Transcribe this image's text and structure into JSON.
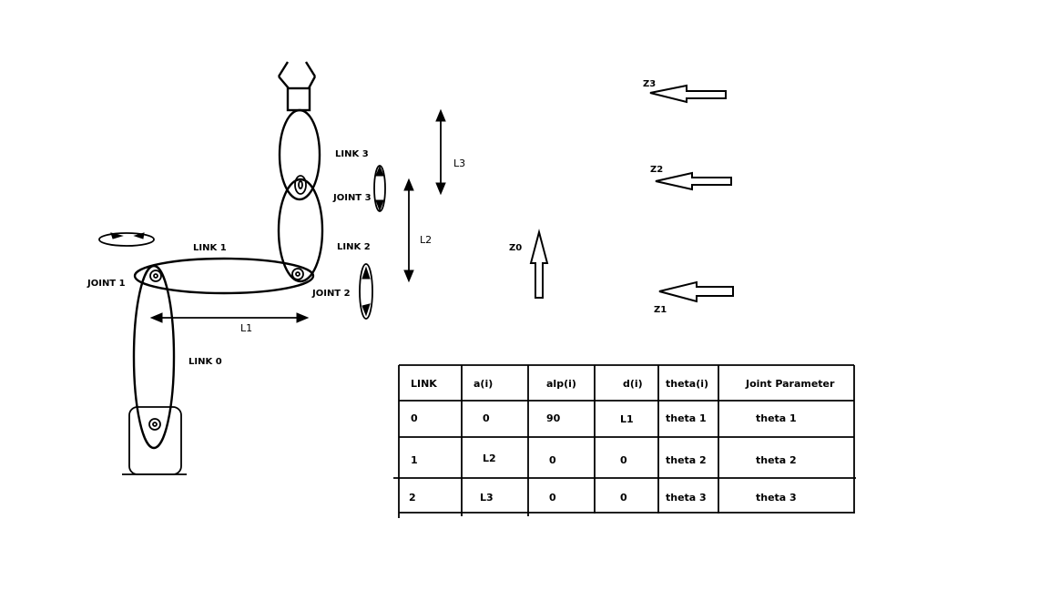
{
  "labels": {
    "link0": "LINK 0",
    "link1": "LINK 1",
    "link2": "LINK 2",
    "link3": "LINK 3",
    "joint1": "JOINT 1",
    "joint2": "JOINT 2",
    "joint3": "JOINT 3",
    "l1": "L1",
    "l2": "L2",
    "l3": "L3",
    "z0": "Z0",
    "z1": "Z1",
    "z2": "Z2",
    "z3": "Z3"
  },
  "table": {
    "headers": [
      "LINK",
      "a(i)",
      "alp(i)",
      "d(i)",
      "theta(i)",
      "Joint Parameter"
    ],
    "rows": [
      [
        "0",
        "0",
        "90",
        "L1",
        "theta 1",
        "theta 1"
      ],
      [
        "1",
        "L2",
        "0",
        "0",
        "theta 2",
        "theta 2"
      ],
      [
        "2",
        "L3",
        "0",
        "0",
        "theta 3",
        "theta 3"
      ]
    ]
  }
}
